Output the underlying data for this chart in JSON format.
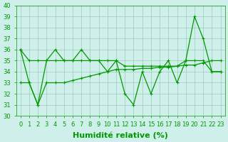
{
  "title": "",
  "xlabel": "Humidité relative (%)",
  "ylabel": "",
  "bg_color": "#cff0ea",
  "grid_color": "#99ccbb",
  "line_color": "#009900",
  "xlim_min": -0.5,
  "xlim_max": 23.5,
  "ylim": [
    30,
    40
  ],
  "yticks": [
    30,
    31,
    32,
    33,
    34,
    35,
    36,
    37,
    38,
    39,
    40
  ],
  "xticks": [
    0,
    1,
    2,
    3,
    4,
    5,
    6,
    7,
    8,
    9,
    10,
    11,
    12,
    13,
    14,
    15,
    16,
    17,
    18,
    19,
    20,
    21,
    22,
    23
  ],
  "series1_x": [
    0,
    1,
    2,
    3,
    4,
    5,
    6,
    7,
    8,
    9,
    10,
    11,
    12,
    13,
    14,
    15,
    16,
    17,
    18,
    19,
    20,
    21,
    22,
    23
  ],
  "series1_y": [
    36,
    33,
    31,
    35,
    36,
    35,
    35,
    36,
    35,
    35,
    34,
    35,
    32,
    31,
    34,
    32,
    34,
    35,
    33,
    35,
    39,
    37,
    34,
    34
  ],
  "series2_x": [
    0,
    1,
    2,
    3,
    4,
    5,
    6,
    7,
    8,
    9,
    10,
    11,
    12,
    13,
    14,
    15,
    16,
    17,
    18,
    19,
    20,
    21,
    22,
    23
  ],
  "series2_y": [
    36,
    35,
    35,
    35,
    35,
    35,
    35,
    35,
    35,
    35,
    35,
    35,
    34.5,
    34.5,
    34.5,
    34.5,
    34.5,
    34.5,
    34.5,
    35,
    35,
    35,
    34,
    34
  ],
  "series3_x": [
    0,
    1,
    2,
    3,
    4,
    5,
    6,
    7,
    8,
    9,
    10,
    11,
    12,
    13,
    14,
    15,
    16,
    17,
    18,
    19,
    20,
    21,
    22,
    23
  ],
  "series3_y": [
    33,
    33,
    31,
    33,
    33,
    33,
    33.2,
    33.4,
    33.6,
    33.8,
    34,
    34.2,
    34.2,
    34.2,
    34.3,
    34.3,
    34.4,
    34.4,
    34.5,
    34.6,
    34.6,
    34.8,
    35,
    35
  ],
  "font_size_xlabel": 8,
  "font_size_ticks": 6,
  "marker_size": 3,
  "linewidth": 0.9
}
